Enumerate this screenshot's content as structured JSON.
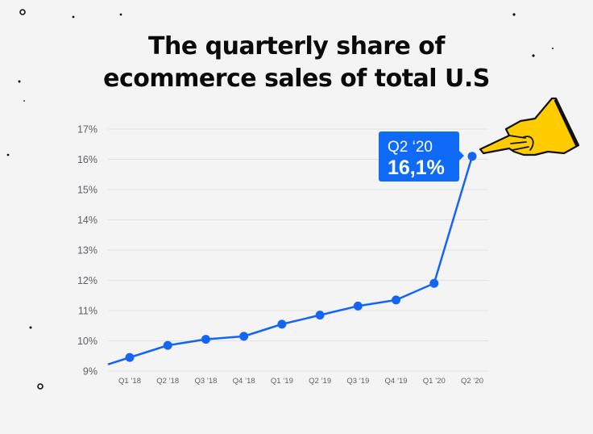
{
  "title_line1": "The quarterly share of",
  "title_line2": "ecommerce sales of total U.S",
  "colors": {
    "line": "#1565f5",
    "callout_bg": "#0f6bf5",
    "callout_text": "#ffffff",
    "hand_fill": "#ffcc00",
    "hand_stroke": "#111111",
    "grid": "#e2e2e4",
    "tick_text": "#5f5f66",
    "background": "#f4f4f5"
  },
  "callout": {
    "label": "Q2 ‘20",
    "value": "16,1%"
  },
  "chart_data": {
    "type": "line",
    "title": "The quarterly share of ecommerce sales of total U.S",
    "xlabel": "",
    "ylabel": "",
    "categories": [
      "Q1 ’18",
      "Q2 ’18",
      "Q3 ’18",
      "Q4 ’18",
      "Q1 ’19",
      "Q2 ’19",
      "Q3 ’19",
      "Q4 ’19",
      "Q1 ’20",
      "Q2 ’20"
    ],
    "series": [
      {
        "values": [
          9.45,
          9.85,
          10.05,
          10.15,
          10.55,
          10.85,
          11.15,
          11.35,
          11.9,
          16.1
        ]
      }
    ],
    "y_ticks": [
      "9%",
      "10%",
      "11%",
      "12%",
      "13%",
      "14%",
      "15%",
      "16%",
      "17%"
    ],
    "ylim": [
      9,
      17
    ],
    "grid": true,
    "legend": "none",
    "icons": [
      "pointing-hand-icon"
    ]
  }
}
